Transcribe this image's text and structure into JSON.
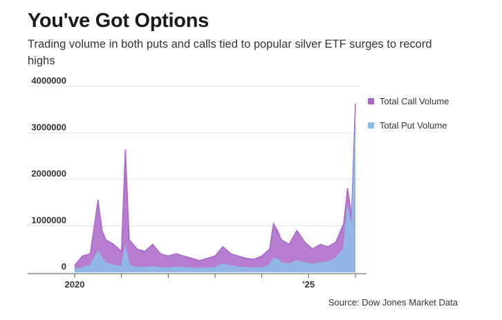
{
  "header": {
    "title": "You've Got Options",
    "subtitle": "Trading volume in both puts and calls tied to popular silver ETF surges to record highs"
  },
  "source": "Source: Dow Jones Market Data",
  "legend": [
    {
      "label": "Total Call Volume",
      "color": "#a966c9"
    },
    {
      "label": "Total Put Volume",
      "color": "#8dbde6"
    }
  ],
  "chart_data": {
    "type": "area",
    "title": "You've Got Options",
    "subtitle": "Trading volume in both puts and calls tied to popular silver ETF surges to record highs",
    "xlabel": "",
    "ylabel": "",
    "y_ticks": [
      0,
      1000000,
      2000000,
      3000000,
      4000000
    ],
    "y_tick_labels": [
      "0",
      "1000000",
      "2000000",
      "3000000",
      "4000000"
    ],
    "ylim": [
      0,
      4000000
    ],
    "x_range": [
      "2020-01-01",
      "2026-02-01"
    ],
    "x_tick_labels": [
      {
        "year": 2020,
        "label": "2020"
      },
      {
        "year": 2021,
        "label": ""
      },
      {
        "year": 2022,
        "label": ""
      },
      {
        "year": 2023,
        "label": ""
      },
      {
        "year": 2024,
        "label": ""
      },
      {
        "year": 2025,
        "label": "'25"
      },
      {
        "year": 2026,
        "label": ""
      }
    ],
    "grid": true,
    "legend_position": "right",
    "series": [
      {
        "name": "Total Call Volume",
        "color": "#a966c9",
        "x": [
          "2020-01",
          "2020-03",
          "2020-05",
          "2020-07",
          "2020-08",
          "2020-09",
          "2020-11",
          "2021-01",
          "2021-02",
          "2021-03",
          "2021-05",
          "2021-07",
          "2021-09",
          "2021-11",
          "2022-01",
          "2022-03",
          "2022-05",
          "2022-07",
          "2022-09",
          "2022-11",
          "2023-01",
          "2023-03",
          "2023-05",
          "2023-07",
          "2023-09",
          "2023-11",
          "2024-01",
          "2024-03",
          "2024-04",
          "2024-05",
          "2024-06",
          "2024-08",
          "2024-10",
          "2024-12",
          "2025-02",
          "2025-04",
          "2025-06",
          "2025-08",
          "2025-10",
          "2025-11",
          "2025-12",
          "2026-01"
        ],
        "values": [
          150000,
          350000,
          400000,
          1550000,
          900000,
          700000,
          600000,
          450000,
          2630000,
          700000,
          500000,
          450000,
          600000,
          400000,
          350000,
          400000,
          350000,
          300000,
          250000,
          300000,
          350000,
          550000,
          400000,
          350000,
          300000,
          280000,
          350000,
          500000,
          1050000,
          900000,
          700000,
          600000,
          900000,
          650000,
          500000,
          600000,
          550000,
          650000,
          1050000,
          1800000,
          1200000,
          3620000
        ]
      },
      {
        "name": "Total Put Volume",
        "color": "#8dbde6",
        "x": [
          "2020-01",
          "2020-03",
          "2020-05",
          "2020-07",
          "2020-08",
          "2020-09",
          "2020-11",
          "2021-01",
          "2021-02",
          "2021-03",
          "2021-05",
          "2021-07",
          "2021-09",
          "2021-11",
          "2022-01",
          "2022-03",
          "2022-05",
          "2022-07",
          "2022-09",
          "2022-11",
          "2023-01",
          "2023-03",
          "2023-05",
          "2023-07",
          "2023-09",
          "2023-11",
          "2024-01",
          "2024-03",
          "2024-04",
          "2024-05",
          "2024-06",
          "2024-08",
          "2024-10",
          "2024-12",
          "2025-02",
          "2025-04",
          "2025-06",
          "2025-08",
          "2025-10",
          "2025-11",
          "2025-12",
          "2026-01"
        ],
        "values": [
          60000,
          100000,
          150000,
          450000,
          300000,
          200000,
          150000,
          120000,
          550000,
          150000,
          100000,
          100000,
          120000,
          100000,
          90000,
          110000,
          100000,
          90000,
          80000,
          90000,
          100000,
          180000,
          140000,
          110000,
          100000,
          90000,
          100000,
          150000,
          300000,
          280000,
          200000,
          180000,
          250000,
          200000,
          170000,
          200000,
          220000,
          300000,
          500000,
          1400000,
          900000,
          3100000
        ]
      }
    ]
  }
}
